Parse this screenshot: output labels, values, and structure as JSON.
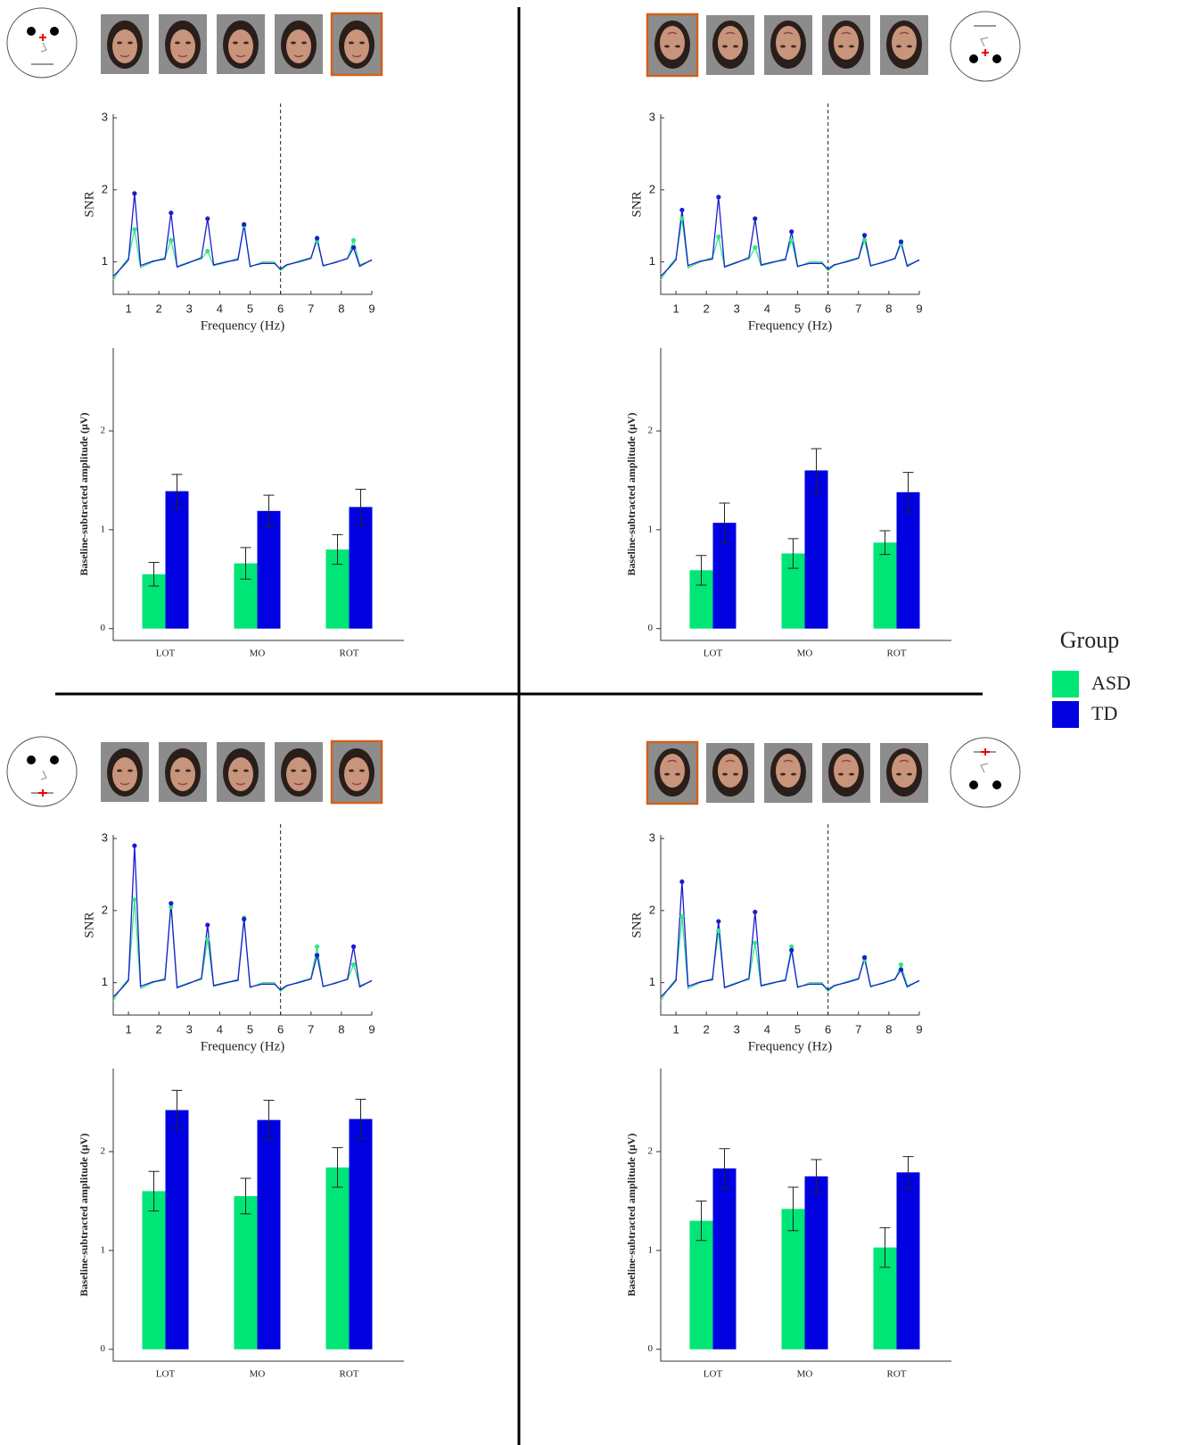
{
  "chart_data": [
    {
      "type": "line",
      "xlabel": "Frequency (Hz)",
      "ylabel": "SNR",
      "xlim": [
        0.5,
        9
      ],
      "ylim": [
        0.55,
        3.05
      ],
      "xticks": [
        1,
        2,
        3,
        4,
        5,
        6,
        7,
        8,
        9
      ],
      "yticks": [
        1,
        2,
        3
      ],
      "vline": 6,
      "x": [
        0.5,
        0.8,
        1.0,
        1.2,
        1.4,
        1.8,
        2.2,
        2.4,
        2.6,
        3.0,
        3.4,
        3.6,
        3.8,
        4.2,
        4.6,
        4.8,
        5.0,
        5.4,
        5.8,
        6.0,
        6.2,
        6.6,
        7.0,
        7.2,
        7.4,
        7.8,
        8.2,
        8.4,
        8.6,
        9.0
      ],
      "series": [
        {
          "name": "ASD",
          "color": "#2ee884",
          "values": [
            0.75,
            0.95,
            1.05,
            1.45,
            0.92,
            1.0,
            1.06,
            1.3,
            0.94,
            1.0,
            1.04,
            1.15,
            0.95,
            0.99,
            1.05,
            1.5,
            0.93,
            1.0,
            1.0,
            0.88,
            0.95,
            1.01,
            1.06,
            1.3,
            0.94,
            1.0,
            1.04,
            1.3,
            0.96,
            1.02
          ]
        },
        {
          "name": "TD",
          "color": "#1c1cd2",
          "values": [
            0.8,
            0.93,
            1.03,
            1.95,
            0.95,
            1.01,
            1.04,
            1.68,
            0.93,
            0.99,
            1.06,
            1.6,
            0.96,
            1.0,
            1.03,
            1.52,
            0.94,
            0.98,
            0.98,
            0.9,
            0.96,
            1.0,
            1.05,
            1.33,
            0.95,
            0.99,
            1.05,
            1.2,
            0.94,
            1.03
          ]
        }
      ]
    },
    {
      "type": "bar",
      "ylabel": "Baseline-subtracted amplitude (µV)",
      "ylim": [
        -0.12,
        2.84
      ],
      "yticks": [
        0,
        1,
        2
      ],
      "categories": [
        "LOT",
        "MO",
        "ROT"
      ],
      "legend_title": "Group",
      "series": [
        {
          "name": "ASD",
          "color": "#00e676",
          "values": [
            0.55,
            0.66,
            0.8
          ],
          "errors": [
            0.12,
            0.16,
            0.15
          ]
        },
        {
          "name": "TD",
          "color": "#0000e0",
          "values": [
            1.39,
            1.19,
            1.23
          ],
          "errors": [
            0.17,
            0.16,
            0.18
          ]
        }
      ]
    },
    {
      "type": "line",
      "xlabel": "Frequency (Hz)",
      "ylabel": "SNR",
      "xlim": [
        0.5,
        9
      ],
      "ylim": [
        0.55,
        3.05
      ],
      "xticks": [
        1,
        2,
        3,
        4,
        5,
        6,
        7,
        8,
        9
      ],
      "yticks": [
        1,
        2,
        3
      ],
      "vline": 6,
      "x": [
        0.5,
        0.8,
        1.0,
        1.2,
        1.4,
        1.8,
        2.2,
        2.4,
        2.6,
        3.0,
        3.4,
        3.6,
        3.8,
        4.2,
        4.6,
        4.8,
        5.0,
        5.4,
        5.8,
        6.0,
        6.2,
        6.6,
        7.0,
        7.2,
        7.4,
        7.8,
        8.2,
        8.4,
        8.6,
        9.0
      ],
      "series": [
        {
          "name": "ASD",
          "color": "#2ee884",
          "values": [
            0.75,
            0.95,
            1.05,
            1.6,
            0.92,
            1.0,
            1.06,
            1.35,
            0.94,
            1.0,
            1.04,
            1.2,
            0.95,
            0.99,
            1.05,
            1.3,
            0.93,
            1.0,
            1.0,
            0.88,
            0.95,
            1.01,
            1.06,
            1.3,
            0.94,
            1.0,
            1.04,
            1.25,
            0.96,
            1.02
          ]
        },
        {
          "name": "TD",
          "color": "#1c1cd2",
          "values": [
            0.8,
            0.93,
            1.03,
            1.72,
            0.95,
            1.01,
            1.04,
            1.9,
            0.93,
            0.99,
            1.06,
            1.6,
            0.96,
            1.0,
            1.03,
            1.42,
            0.94,
            0.98,
            0.98,
            0.9,
            0.96,
            1.0,
            1.05,
            1.37,
            0.95,
            0.99,
            1.05,
            1.28,
            0.94,
            1.03
          ]
        }
      ]
    },
    {
      "type": "bar",
      "ylabel": "Baseline-subtracted amplitude (µV)",
      "ylim": [
        -0.12,
        2.84
      ],
      "yticks": [
        0,
        1,
        2
      ],
      "categories": [
        "LOT",
        "MO",
        "ROT"
      ],
      "series": [
        {
          "name": "ASD",
          "color": "#00e676",
          "values": [
            0.59,
            0.76,
            0.87
          ],
          "errors": [
            0.15,
            0.15,
            0.12
          ]
        },
        {
          "name": "TD",
          "color": "#0000e0",
          "values": [
            1.07,
            1.6,
            1.38
          ],
          "errors": [
            0.2,
            0.22,
            0.2
          ]
        }
      ]
    },
    {
      "type": "line",
      "xlabel": "Frequency (Hz)",
      "ylabel": "SNR",
      "xlim": [
        0.5,
        9
      ],
      "ylim": [
        0.55,
        3.05
      ],
      "xticks": [
        1,
        2,
        3,
        4,
        5,
        6,
        7,
        8,
        9
      ],
      "yticks": [
        1,
        2,
        3
      ],
      "vline": 6,
      "x": [
        0.5,
        0.8,
        1.0,
        1.2,
        1.4,
        1.8,
        2.2,
        2.4,
        2.6,
        3.0,
        3.4,
        3.6,
        3.8,
        4.2,
        4.6,
        4.8,
        5.0,
        5.4,
        5.8,
        6.0,
        6.2,
        6.6,
        7.0,
        7.2,
        7.4,
        7.8,
        8.2,
        8.4,
        8.6,
        9.0
      ],
      "series": [
        {
          "name": "ASD",
          "color": "#2ee884",
          "values": [
            0.75,
            0.95,
            1.05,
            2.15,
            0.92,
            1.0,
            1.06,
            2.05,
            0.94,
            1.0,
            1.04,
            1.6,
            0.95,
            0.99,
            1.05,
            1.9,
            0.93,
            1.0,
            1.0,
            0.88,
            0.95,
            1.01,
            1.06,
            1.5,
            0.94,
            1.0,
            1.04,
            1.25,
            0.96,
            1.02
          ]
        },
        {
          "name": "TD",
          "color": "#1c1cd2",
          "values": [
            0.8,
            0.93,
            1.03,
            2.9,
            0.95,
            1.01,
            1.04,
            2.1,
            0.93,
            0.99,
            1.06,
            1.8,
            0.96,
            1.0,
            1.03,
            1.88,
            0.94,
            0.98,
            0.98,
            0.9,
            0.96,
            1.0,
            1.05,
            1.38,
            0.95,
            0.99,
            1.05,
            1.5,
            0.94,
            1.03
          ]
        }
      ]
    },
    {
      "type": "bar",
      "ylabel": "Baseline-subtracted amplitude (µV)",
      "ylim": [
        -0.12,
        2.84
      ],
      "yticks": [
        0,
        1,
        2
      ],
      "categories": [
        "LOT",
        "MO",
        "ROT"
      ],
      "series": [
        {
          "name": "ASD",
          "color": "#00e676",
          "values": [
            1.6,
            1.55,
            1.84
          ],
          "errors": [
            0.2,
            0.18,
            0.2
          ]
        },
        {
          "name": "TD",
          "color": "#0000e0",
          "values": [
            2.42,
            2.32,
            2.33
          ],
          "errors": [
            0.2,
            0.2,
            0.2
          ]
        }
      ]
    },
    {
      "type": "line",
      "xlabel": "Frequency (Hz)",
      "ylabel": "SNR",
      "xlim": [
        0.5,
        9
      ],
      "ylim": [
        0.55,
        3.05
      ],
      "xticks": [
        1,
        2,
        3,
        4,
        5,
        6,
        7,
        8,
        9
      ],
      "yticks": [
        1,
        2,
        3
      ],
      "vline": 6,
      "x": [
        0.5,
        0.8,
        1.0,
        1.2,
        1.4,
        1.8,
        2.2,
        2.4,
        2.6,
        3.0,
        3.4,
        3.6,
        3.8,
        4.2,
        4.6,
        4.8,
        5.0,
        5.4,
        5.8,
        6.0,
        6.2,
        6.6,
        7.0,
        7.2,
        7.4,
        7.8,
        8.2,
        8.4,
        8.6,
        9.0
      ],
      "series": [
        {
          "name": "ASD",
          "color": "#2ee884",
          "values": [
            0.75,
            0.95,
            1.05,
            1.92,
            0.92,
            1.0,
            1.06,
            1.72,
            0.94,
            1.0,
            1.04,
            1.55,
            0.95,
            0.99,
            1.05,
            1.5,
            0.93,
            1.0,
            1.0,
            0.88,
            0.95,
            1.01,
            1.06,
            1.32,
            0.94,
            1.0,
            1.04,
            1.25,
            0.96,
            1.02
          ]
        },
        {
          "name": "TD",
          "color": "#1c1cd2",
          "values": [
            0.8,
            0.93,
            1.03,
            2.4,
            0.95,
            1.01,
            1.04,
            1.85,
            0.93,
            0.99,
            1.06,
            1.98,
            0.96,
            1.0,
            1.03,
            1.45,
            0.94,
            0.98,
            0.98,
            0.9,
            0.96,
            1.0,
            1.05,
            1.35,
            0.95,
            0.99,
            1.05,
            1.18,
            0.94,
            1.03
          ]
        }
      ]
    },
    {
      "type": "bar",
      "ylabel": "Baseline-subtracted amplitude (µV)",
      "ylim": [
        -0.12,
        2.84
      ],
      "yticks": [
        0,
        1,
        2
      ],
      "categories": [
        "LOT",
        "MO",
        "ROT"
      ],
      "series": [
        {
          "name": "ASD",
          "color": "#00e676",
          "values": [
            1.3,
            1.42,
            1.03
          ],
          "errors": [
            0.2,
            0.22,
            0.2
          ]
        },
        {
          "name": "TD",
          "color": "#0000e0",
          "values": [
            1.83,
            1.75,
            1.79
          ],
          "errors": [
            0.2,
            0.17,
            0.16
          ]
        }
      ]
    }
  ]
}
